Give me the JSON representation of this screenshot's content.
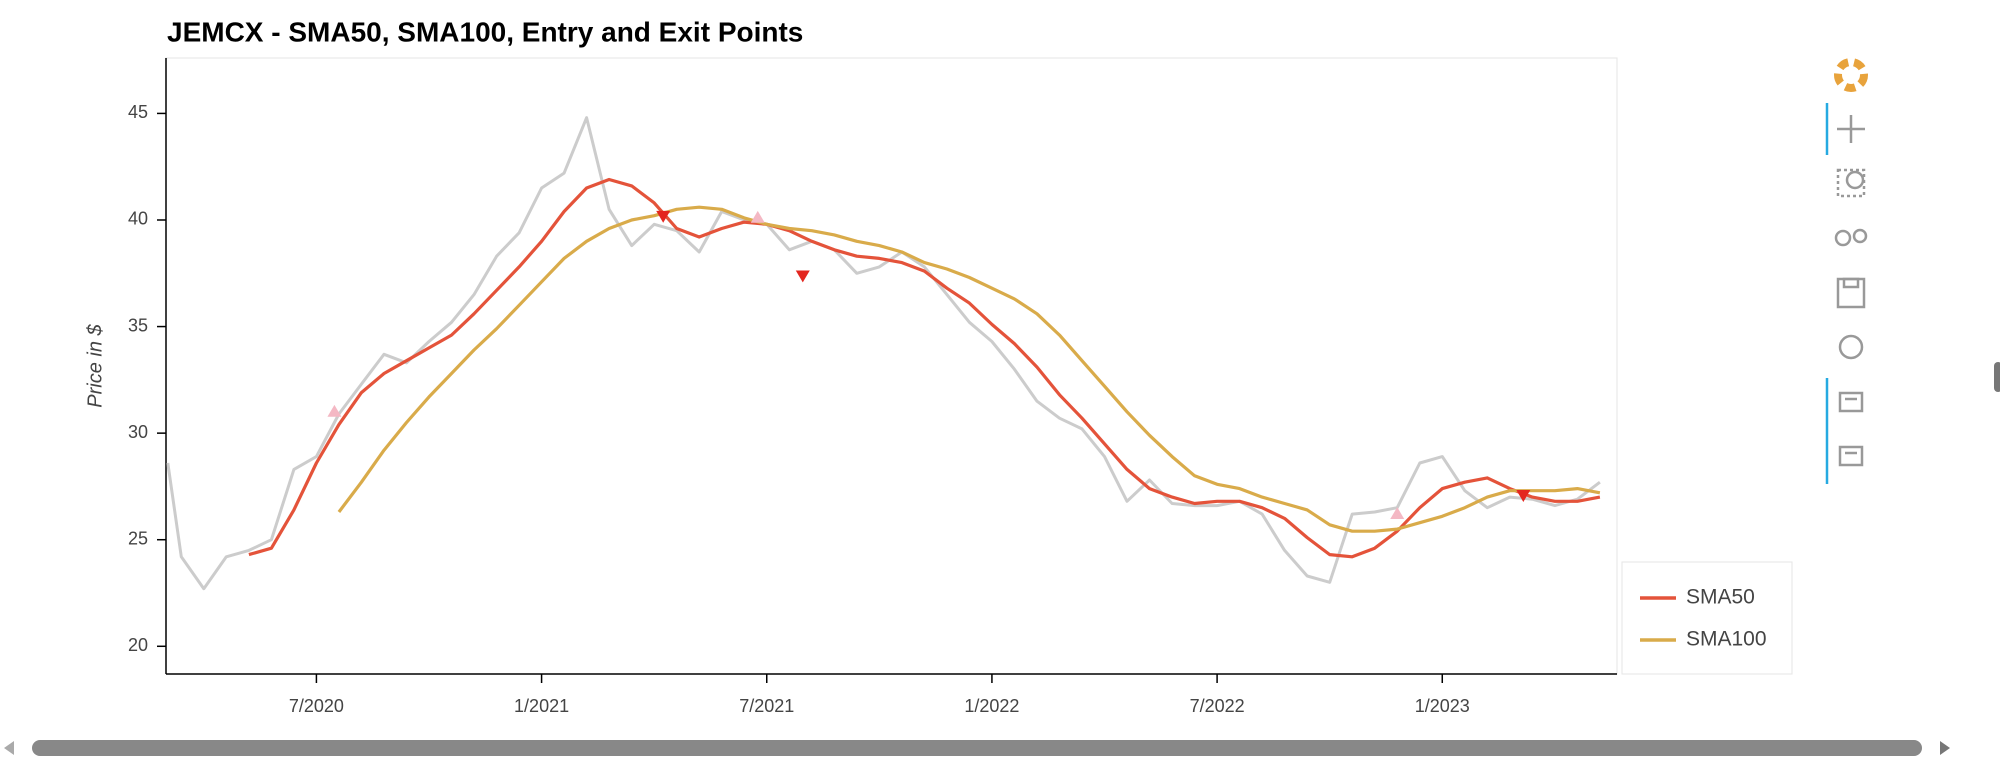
{
  "chart_data": {
    "type": "line",
    "title": "JEMCX - SMA50, SMA100, Entry and Exit Points",
    "y_label": "Price in $",
    "x": [
      2020.17,
      2020.2,
      2020.25,
      2020.3,
      2020.35,
      2020.4,
      2020.45,
      2020.5,
      2020.55,
      2020.6,
      2020.65,
      2020.7,
      2020.75,
      2020.8,
      2020.85,
      2020.9,
      2020.95,
      2021.0,
      2021.05,
      2021.1,
      2021.15,
      2021.2,
      2021.25,
      2021.3,
      2021.35,
      2021.4,
      2021.45,
      2021.5,
      2021.55,
      2021.6,
      2021.65,
      2021.7,
      2021.75,
      2021.8,
      2021.85,
      2021.9,
      2021.95,
      2022.0,
      2022.05,
      2022.1,
      2022.15,
      2022.2,
      2022.25,
      2022.3,
      2022.35,
      2022.4,
      2022.45,
      2022.5,
      2022.55,
      2022.6,
      2022.65,
      2022.7,
      2022.75,
      2022.8,
      2022.85,
      2022.9,
      2022.95,
      2023.0,
      2023.05,
      2023.1,
      2023.15,
      2023.2,
      2023.25,
      2023.3,
      2023.35
    ],
    "price_line": {
      "color": "#cccccc",
      "values": [
        28.6,
        24.2,
        22.7,
        24.2,
        24.5,
        25.0,
        28.3,
        28.9,
        30.9,
        32.3,
        33.7,
        33.3,
        34.3,
        35.2,
        36.5,
        38.3,
        39.4,
        41.5,
        42.2,
        44.8,
        40.5,
        38.8,
        39.8,
        39.5,
        38.5,
        40.4,
        40.0,
        39.8,
        38.6,
        39.0,
        38.6,
        37.5,
        37.8,
        38.5,
        37.8,
        36.5,
        35.2,
        34.3,
        33.0,
        31.5,
        30.7,
        30.2,
        28.9,
        26.8,
        27.8,
        26.7,
        26.6,
        26.6,
        26.8,
        26.2,
        24.5,
        23.3,
        23.0,
        26.2,
        26.3,
        26.5,
        28.6,
        28.9,
        27.3,
        26.5,
        27.0,
        26.9,
        26.6,
        26.9,
        27.7
      ]
    },
    "series": [
      {
        "name": "SMA50",
        "color": "#e4533a",
        "values": [
          null,
          null,
          null,
          null,
          24.3,
          24.6,
          26.4,
          28.6,
          30.4,
          31.9,
          32.8,
          33.4,
          34.0,
          34.6,
          35.6,
          36.7,
          37.8,
          39.0,
          40.4,
          41.5,
          41.9,
          41.6,
          40.8,
          39.6,
          39.2,
          39.6,
          39.9,
          39.8,
          39.5,
          39.0,
          38.6,
          38.3,
          38.2,
          38.0,
          37.6,
          36.8,
          36.1,
          35.1,
          34.2,
          33.1,
          31.8,
          30.7,
          29.5,
          28.3,
          27.4,
          27.0,
          26.7,
          26.8,
          26.8,
          26.5,
          26.0,
          25.1,
          24.3,
          24.2,
          24.6,
          25.4,
          26.5,
          27.4,
          27.7,
          27.9,
          27.4,
          27.0,
          26.8,
          26.8,
          27.0
        ]
      },
      {
        "name": "SMA100",
        "color": "#d9ab4a",
        "values": [
          null,
          null,
          null,
          null,
          null,
          null,
          null,
          null,
          26.3,
          27.7,
          29.2,
          30.5,
          31.7,
          32.8,
          33.9,
          34.9,
          36.0,
          37.1,
          38.2,
          39.0,
          39.6,
          40.0,
          40.2,
          40.5,
          40.6,
          40.5,
          40.1,
          39.8,
          39.6,
          39.5,
          39.3,
          39.0,
          38.8,
          38.5,
          38.0,
          37.7,
          37.3,
          36.8,
          36.3,
          35.6,
          34.6,
          33.4,
          32.2,
          31.0,
          29.9,
          28.9,
          28.0,
          27.6,
          27.4,
          27.0,
          26.7,
          26.4,
          25.7,
          25.4,
          25.4,
          25.5,
          25.8,
          26.1,
          26.5,
          27.0,
          27.3,
          27.3,
          27.3,
          27.4,
          27.2
        ]
      }
    ],
    "entry_points": {
      "color": "#f4b8c4",
      "x": [
        2020.54,
        2021.48,
        2022.9
      ],
      "values": [
        31.0,
        40.1,
        26.2
      ]
    },
    "exit_points": {
      "color": "#e3261f",
      "x": [
        2021.27,
        2021.58,
        2023.18
      ],
      "values": [
        40.2,
        37.4,
        27.1
      ]
    },
    "xlim": [
      2020.166,
      2023.388
    ],
    "xticks": [
      {
        "value": 2020.5,
        "label": "7/2020"
      },
      {
        "value": 2021.0,
        "label": "1/2021"
      },
      {
        "value": 2021.5,
        "label": "7/2021"
      },
      {
        "value": 2022.0,
        "label": "1/2022"
      },
      {
        "value": 2022.5,
        "label": "7/2022"
      },
      {
        "value": 2023.0,
        "label": "1/2023"
      }
    ],
    "ylim": [
      18.7,
      47.6
    ],
    "yticks": [
      20,
      25,
      30,
      35,
      40,
      45
    ],
    "grid": false,
    "legend": "bottom-right"
  }
}
